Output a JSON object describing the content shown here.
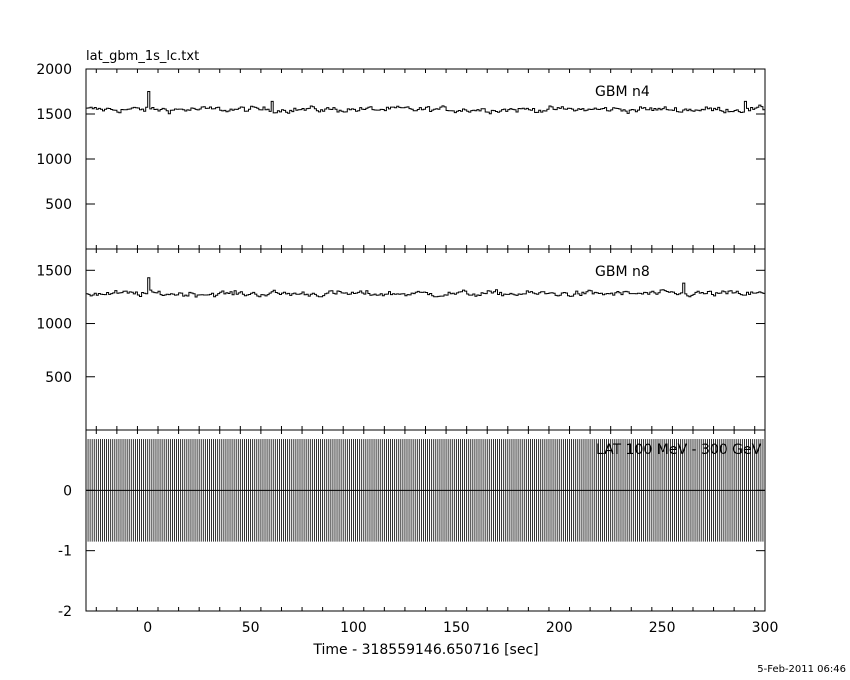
{
  "title": "lat_gbm_1s_lc.txt",
  "date_stamp": "5-Feb-2011 06:46",
  "chart_data": [
    {
      "type": "line",
      "panel_label": "GBM n4",
      "x_range": [
        -30,
        300
      ],
      "ylim": [
        0,
        2000
      ],
      "yticks": [
        500,
        1000,
        1500,
        2000
      ],
      "baseline": 1550,
      "noise": 30,
      "bumps": [
        {
          "x": 0,
          "value": 1750
        },
        {
          "x": 60,
          "value": 1640
        },
        {
          "x": 290,
          "value": 1640
        }
      ]
    },
    {
      "type": "line",
      "panel_label": "GBM n8",
      "x_range": [
        -30,
        300
      ],
      "ylim": [
        0,
        1700
      ],
      "yticks": [
        500,
        1000,
        1500
      ],
      "baseline": 1280,
      "noise": 25,
      "bumps": [
        {
          "x": 0,
          "value": 1430
        },
        {
          "x": 260,
          "value": 1380
        }
      ]
    },
    {
      "type": "bar",
      "panel_label": "LAT 100 MeV - 300 GeV",
      "x_range": [
        -30,
        300
      ],
      "ylim": [
        -2,
        1
      ],
      "yticks": [
        -2,
        -1,
        0
      ],
      "y_line": 0,
      "error_low": -0.85,
      "error_high": 0.85,
      "x_step": 1
    }
  ],
  "xaxis": {
    "label": "Time - 318559146.650716 [sec]",
    "ticks": [
      0,
      50,
      100,
      150,
      200,
      250,
      300
    ]
  }
}
